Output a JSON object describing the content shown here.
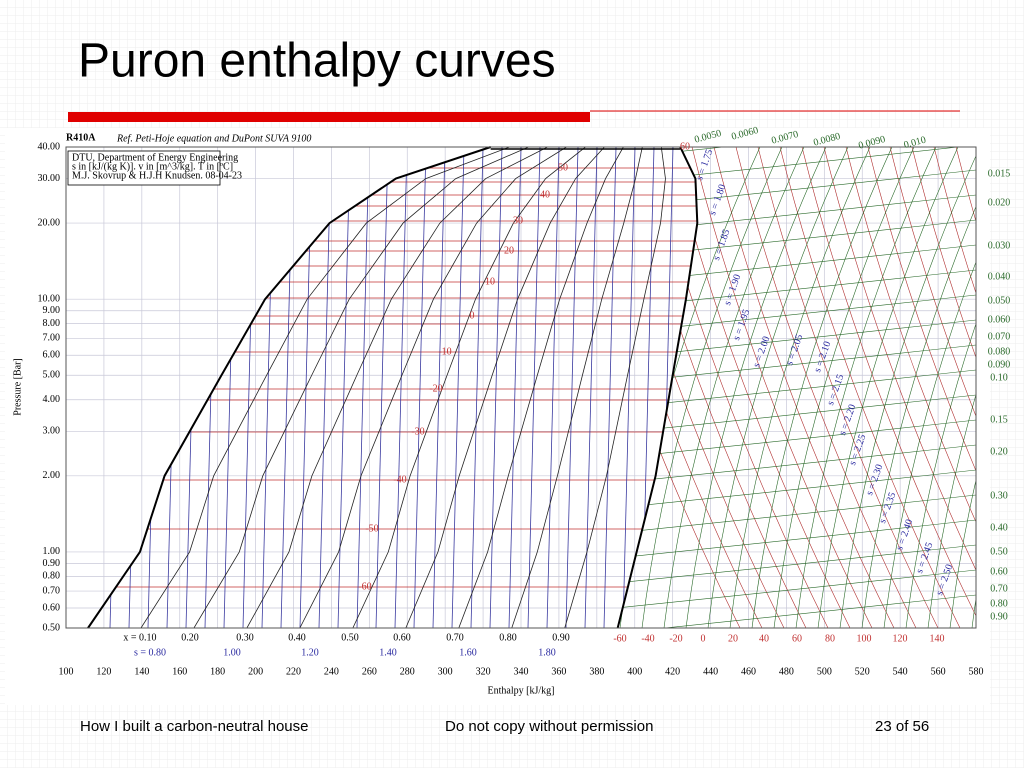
{
  "slide": {
    "title": "Puron enthalpy curves",
    "footer": [
      "How I built a carbon-neutral house",
      "Do not copy without permission",
      "23 of 56"
    ]
  },
  "chart_data": {
    "type": "line",
    "title": "R410A",
    "subtitle": "Ref. Peti-Hoje equation and DuPont SUVA 9100",
    "info_box": [
      "DTU, Department of Energy Engineering",
      "s in [kJ/(kg K)]. v in [m^3/kg]. T in [ºC]",
      "M.J. Skovrup & H.J.H Knudsen. 08-04-23"
    ],
    "x_label": "Enthalpy [kJ/kg]",
    "y_label": "Pressure [Bar]",
    "xlim": [
      100,
      580
    ],
    "ylim": [
      0.5,
      40
    ],
    "ylog": true,
    "grid": true,
    "xticks": [
      100,
      120,
      140,
      160,
      180,
      200,
      220,
      240,
      260,
      280,
      300,
      320,
      340,
      360,
      380,
      400,
      420,
      440,
      460,
      480,
      500,
      520,
      540,
      560,
      580
    ],
    "yticks": [
      {
        "value": 40,
        "label": "40.00"
      },
      {
        "value": 30,
        "label": "30.00"
      },
      {
        "value": 20,
        "label": "20.00"
      },
      {
        "value": 10,
        "label": "10.00"
      },
      {
        "value": 9,
        "label": "9.00"
      },
      {
        "value": 8,
        "label": "8.00"
      },
      {
        "value": 7,
        "label": "7.00"
      },
      {
        "value": 6,
        "label": "6.00"
      },
      {
        "value": 5,
        "label": "5.00"
      },
      {
        "value": 4,
        "label": "4.00"
      },
      {
        "value": 3,
        "label": "3.00"
      },
      {
        "value": 2,
        "label": "2.00"
      },
      {
        "value": 1,
        "label": "1.00"
      },
      {
        "value": 0.9,
        "label": "0.90"
      },
      {
        "value": 0.8,
        "label": "0.80"
      },
      {
        "value": 0.7,
        "label": "0.70"
      },
      {
        "value": 0.6,
        "label": "0.60"
      },
      {
        "value": 0.5,
        "label": "0.50"
      }
    ],
    "series": [
      {
        "color": "#000000",
        "x": [
          111.6,
          139,
          152,
          182,
          205,
          239,
          274,
          324
        ],
        "values": [
          0.5,
          1,
          2,
          5,
          10,
          20,
          30,
          40
        ]
      },
      {
        "color": "#000000",
        "x": [
          391,
          401,
          411,
          420,
          427,
          433,
          432,
          424
        ],
        "values": [
          0.5,
          1,
          2,
          5,
          10,
          20,
          30,
          40
        ]
      }
    ],
    "quality_labels": [
      "x = 0.10",
      "0.20",
      "0.30",
      "0.40",
      "0.50",
      "0.60",
      "0.70",
      "0.80",
      "0.90"
    ],
    "entropy_row_labels": [
      "s = 0.80",
      "1.00",
      "1.20",
      "1.40",
      "1.60",
      "1.80"
    ],
    "temperature_labels": [
      "60",
      "50",
      "40",
      "30",
      "20",
      "10",
      "0",
      "-10",
      "-20",
      "-30",
      "-40",
      "-50",
      "-60"
    ],
    "bottom_temperature_labels": [
      "-60",
      "-40",
      "-20",
      "0",
      "20",
      "40",
      "60",
      "80",
      "100",
      "120",
      "140"
    ],
    "volume_labels_top": [
      "0.0050",
      "0.0060",
      "0.0070",
      "0.0080",
      "0.0090",
      "0.010"
    ],
    "volume_labels_right": [
      "0.015",
      "0.020",
      "0.030",
      "0.040",
      "0.050",
      "0.060",
      "0.070",
      "0.080",
      "0.090",
      "0.10",
      "0.15",
      "0.20",
      "0.30",
      "0.40",
      "0.50",
      "0.60",
      "0.70",
      "0.80",
      "0.90"
    ],
    "entropy_labels": [
      "s = 1.75",
      "s = 1.80",
      "s = 1.85",
      "s = 1.90",
      "s = 1.95",
      "s = 2.00",
      "s = 2.05",
      "s = 2.10",
      "s = 2.15",
      "s = 2.20",
      "s = 2.25",
      "s = 2.30",
      "s = 2.35",
      "s = 2.40",
      "s = 2.45",
      "s = 2.50"
    ]
  }
}
